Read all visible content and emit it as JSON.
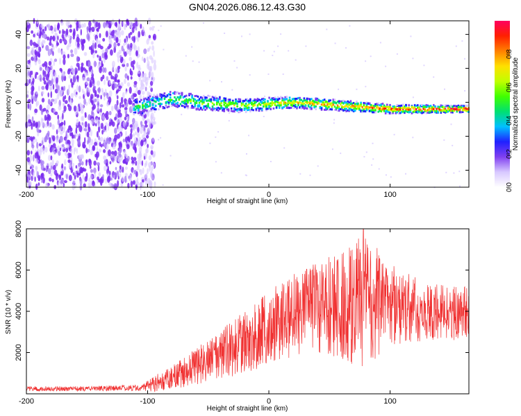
{
  "title": "GN04.2026.086.12.43.G30",
  "chart_data": [
    {
      "type": "heatmap",
      "name": "spectrogram",
      "xlabel": "Height of straight line (km)",
      "ylabel": "Frequency (Hz)",
      "xlim": [
        -200,
        165
      ],
      "ylim": [
        -50,
        48
      ],
      "xticks": [
        -200,
        -100,
        0,
        100
      ],
      "yticks": [
        -40,
        -20,
        0,
        20,
        40
      ],
      "ridge_frequency_hz": [
        [
          -110,
          -3
        ],
        [
          -80,
          2
        ],
        [
          -60,
          0
        ],
        [
          -40,
          -1
        ],
        [
          -20,
          -2
        ],
        [
          0,
          -1
        ],
        [
          20,
          0
        ],
        [
          40,
          -1
        ],
        [
          60,
          -2
        ],
        [
          80,
          -3
        ],
        [
          100,
          -4
        ],
        [
          165,
          -4
        ]
      ],
      "noise_region_km": [
        -200,
        -97
      ],
      "colorbar": {
        "label": "Normalized spectral amplitude",
        "range": [
          0,
          1
        ],
        "ticks": [
          "0.0",
          "0.2",
          "0.4",
          "0.6",
          "0.8"
        ],
        "colors": [
          "#ffffff",
          "#d8c8ff",
          "#8040f0",
          "#2020ff",
          "#00c0ff",
          "#00e070",
          "#40ff00",
          "#c0ff00",
          "#ffe000",
          "#ff8000",
          "#ff2000",
          "#ff0060"
        ]
      }
    },
    {
      "type": "line",
      "name": "snr",
      "xlabel": "Height of straight line (km)",
      "ylabel": "SNR (10 * v/v)",
      "xlim": [
        -200,
        165
      ],
      "ylim": [
        0,
        8000
      ],
      "xticks": [
        -200,
        -100,
        0,
        100
      ],
      "yticks": [
        2000,
        4000,
        6000,
        8000
      ],
      "line_color": "#f03030",
      "envelope": [
        {
          "x": -200,
          "mean": 250,
          "spread": 120
        },
        {
          "x": -150,
          "mean": 250,
          "spread": 120
        },
        {
          "x": -105,
          "mean": 300,
          "spread": 150
        },
        {
          "x": -95,
          "mean": 500,
          "spread": 400
        },
        {
          "x": -80,
          "mean": 800,
          "spread": 600
        },
        {
          "x": -60,
          "mean": 1300,
          "spread": 900
        },
        {
          "x": -40,
          "mean": 1900,
          "spread": 1200
        },
        {
          "x": -20,
          "mean": 2500,
          "spread": 1500
        },
        {
          "x": 0,
          "mean": 3200,
          "spread": 1800
        },
        {
          "x": 20,
          "mean": 3800,
          "spread": 2000
        },
        {
          "x": 40,
          "mean": 4200,
          "spread": 2200
        },
        {
          "x": 60,
          "mean": 4300,
          "spread": 2600
        },
        {
          "x": 78,
          "mean": 4500,
          "spread": 3400
        },
        {
          "x": 100,
          "mean": 4300,
          "spread": 2000
        },
        {
          "x": 130,
          "mean": 4000,
          "spread": 1400
        },
        {
          "x": 165,
          "mean": 3900,
          "spread": 1300
        }
      ],
      "peak": {
        "x": 78,
        "y": 8000
      }
    }
  ]
}
